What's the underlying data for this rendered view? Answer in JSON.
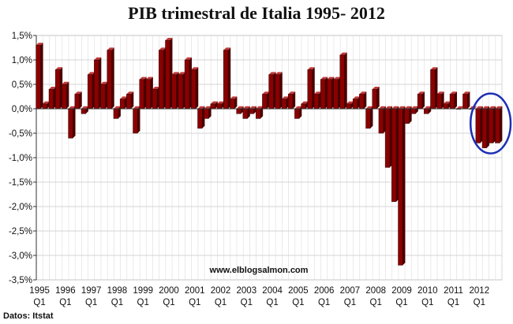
{
  "chart_data": {
    "type": "bar",
    "title": "PIB trimestral de Italia 1995- 2012",
    "source": "Datos: Itstat",
    "watermark": "www.elblogsalmon.com",
    "yticks": [
      "1,5%",
      "1,0%",
      "0,5%",
      "0,0%",
      "-0,5%",
      "-1,0%",
      "-1,5%",
      "-2,0%",
      "-2,5%",
      "-3,0%",
      "-3,5%"
    ],
    "ylim": [
      -3.5,
      1.5
    ],
    "years": [
      "1995",
      "1996",
      "1997",
      "1998",
      "1999",
      "2000",
      "2001",
      "2002",
      "2003",
      "2004",
      "2005",
      "2006",
      "2007",
      "2008",
      "2009",
      "2010",
      "2011",
      "2012"
    ],
    "quarter_label": "Q1",
    "values": [
      1.3,
      0.1,
      0.4,
      0.8,
      0.5,
      -0.6,
      0.3,
      -0.1,
      0.7,
      1.0,
      0.5,
      1.2,
      -0.2,
      0.2,
      0.3,
      -0.5,
      0.6,
      0.6,
      0.4,
      1.2,
      1.4,
      0.7,
      0.7,
      1.0,
      0.8,
      -0.4,
      -0.2,
      0.1,
      0.1,
      1.2,
      0.2,
      -0.1,
      -0.2,
      -0.1,
      -0.2,
      0.3,
      0.7,
      0.7,
      0.2,
      0.3,
      -0.2,
      0.1,
      0.8,
      0.3,
      0.6,
      0.6,
      0.6,
      1.1,
      0.1,
      0.2,
      0.3,
      -0.4,
      0.4,
      -0.5,
      -1.2,
      -1.9,
      -3.2,
      -0.3,
      -0.1,
      0.3,
      -0.1,
      0.8,
      0.3,
      0.1,
      0.3,
      0.0,
      0.3,
      0.0,
      -0.7,
      -0.8,
      -0.7,
      -0.7
    ],
    "grid": true,
    "bar_color": "#8b0000",
    "highlight": {
      "from_index": 68,
      "to_index": 71,
      "color": "#1c2fb4"
    }
  }
}
